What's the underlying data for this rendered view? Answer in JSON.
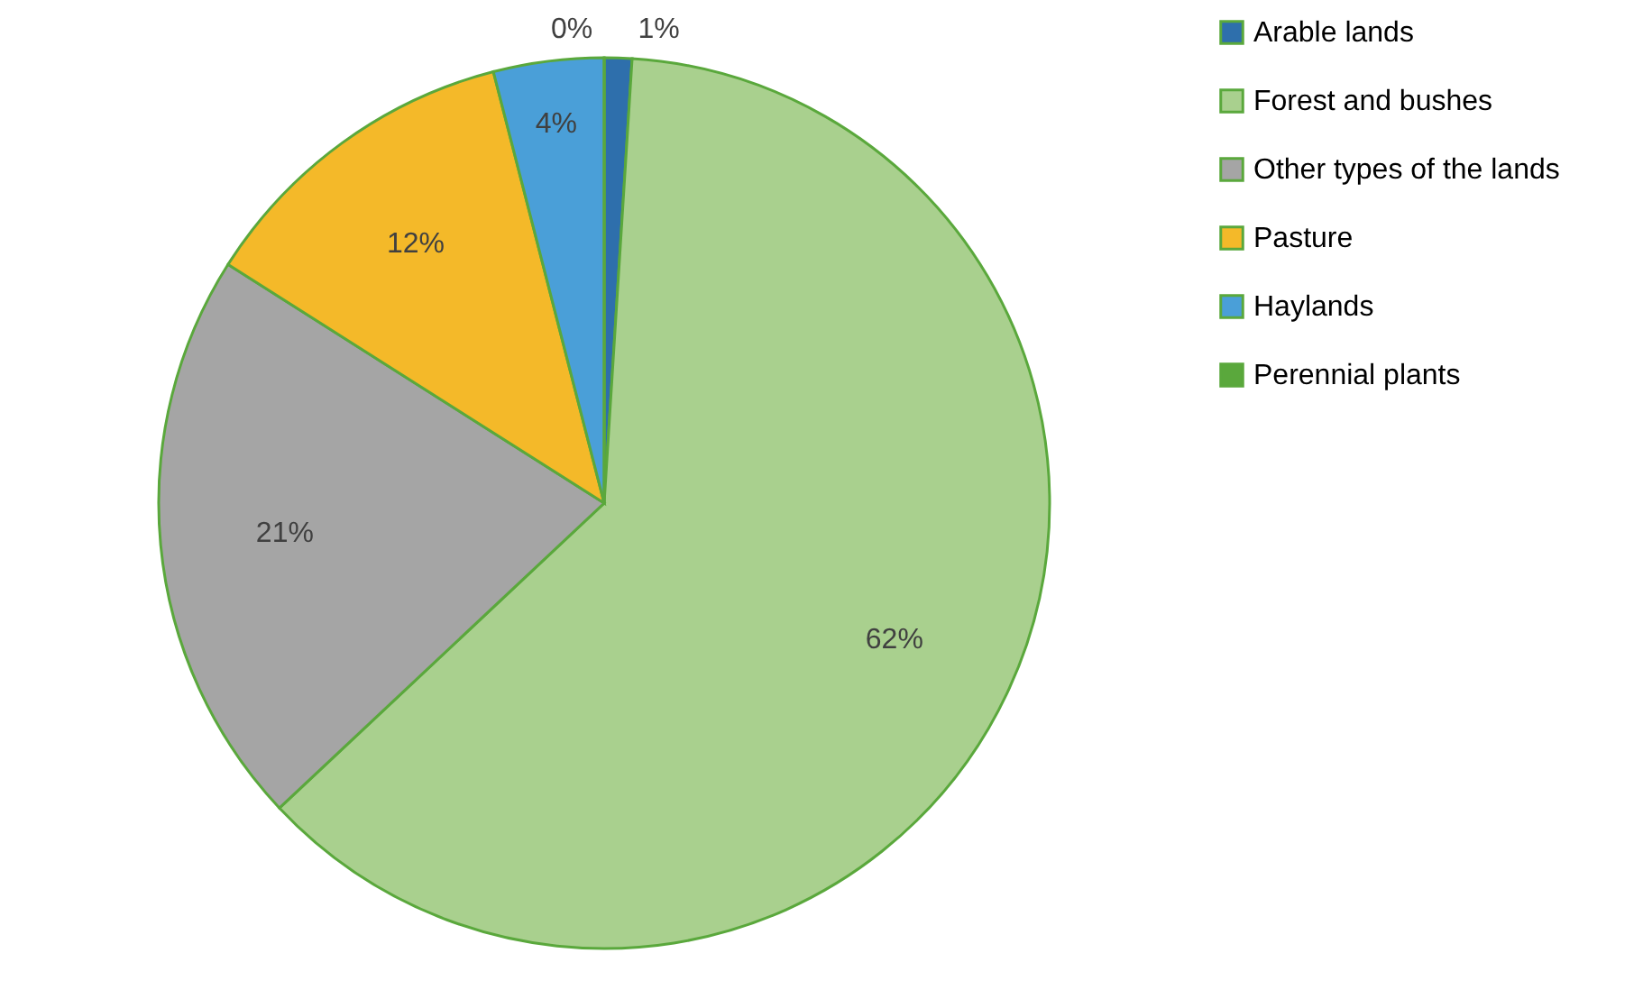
{
  "chart_data": {
    "type": "pie",
    "categories": [
      "Arable lands",
      "Forest and bushes",
      "Other types of the lands",
      "Pasture",
      "Haylands",
      "Perennial plants"
    ],
    "values": [
      1,
      62,
      21,
      12,
      4,
      0
    ],
    "colors": [
      "#2e6fac",
      "#a9d08e",
      "#a5a5a5",
      "#f4b929",
      "#4a9fd8",
      "#5aa83c"
    ],
    "value_labels": [
      "1%",
      "62%",
      "21%",
      "12%",
      "4%",
      "0%"
    ],
    "legend": "right"
  }
}
